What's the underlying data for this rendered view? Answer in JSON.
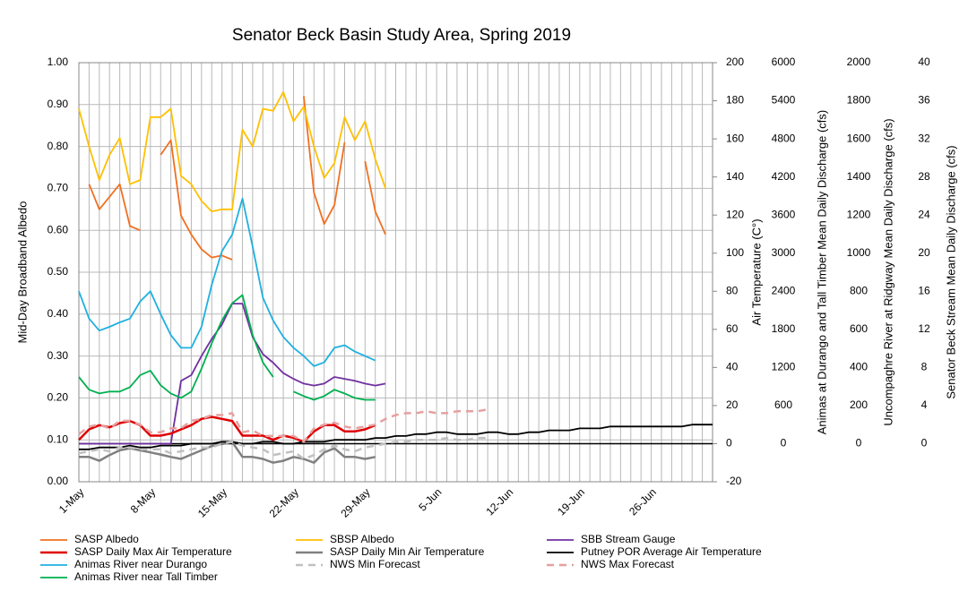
{
  "chart_data": {
    "type": "line",
    "title": "Senator Beck Basin Study Area, Spring 2019",
    "ylabel": "Mid-Day Broadband Albedo",
    "y2label": "Air Temperature (C°)",
    "y3label": "Animas at Durango and Tall Timber Mean Daily Discharge (cfs)",
    "y4label": "Uncompaghre River at Ridgway Mean Daily Discharge (cfs)",
    "y5label": "Senator Beck Stream Mean Daily Discharge (cfs)",
    "categories": [
      "1-May",
      null,
      null,
      null,
      null,
      null,
      null,
      "8-May",
      null,
      null,
      null,
      null,
      null,
      null,
      "15-May",
      null,
      null,
      null,
      null,
      null,
      null,
      "22-May",
      null,
      null,
      null,
      null,
      null,
      null,
      "29-May",
      null,
      null,
      null,
      null,
      null,
      null,
      "5-Jun",
      null,
      null,
      null,
      null,
      null,
      null,
      "12-Jun",
      null,
      null,
      null,
      null,
      null,
      null,
      "19-Jun",
      null,
      null,
      null,
      null,
      null,
      null,
      "26-Jun",
      null,
      null,
      null,
      null,
      null,
      null
    ],
    "ylim": [
      0,
      1
    ],
    "yticks": [
      {
        "value": 0,
        "label": "0.00"
      },
      {
        "value": 0.1,
        "label": "0.10"
      },
      {
        "value": 0.2,
        "label": "0.20"
      },
      {
        "value": 0.3,
        "label": "0.30"
      },
      {
        "value": 0.4,
        "label": "0.40"
      },
      {
        "value": 0.5,
        "label": "0.50"
      },
      {
        "value": 0.6,
        "label": "0.60"
      },
      {
        "value": 0.7,
        "label": "0.70"
      },
      {
        "value": 0.8,
        "label": "0.80"
      },
      {
        "value": 0.9,
        "label": "0.90"
      },
      {
        "value": 1,
        "label": "1.00"
      }
    ],
    "y2lim": [
      -20,
      200
    ],
    "y2ticks": [
      -20,
      0,
      20,
      40,
      60,
      80,
      100,
      120,
      140,
      160,
      180,
      200
    ],
    "y3lim": [
      -600,
      6000
    ],
    "y3ticks": [
      0,
      600,
      1200,
      1800,
      2400,
      3000,
      3600,
      4200,
      4800,
      5400,
      6000
    ],
    "y4lim": [
      -200,
      2000
    ],
    "y4ticks": [
      0,
      200,
      400,
      600,
      800,
      1000,
      1200,
      1400,
      1600,
      1800,
      2000
    ],
    "y5lim": [
      -4,
      40
    ],
    "y5ticks": [
      0,
      4,
      8,
      12,
      16,
      20,
      24,
      28,
      32,
      36,
      40
    ],
    "grid": true,
    "series": [
      {
        "name": "SASP Albedo",
        "color": "#f07020",
        "axis": "y",
        "values": [
          null,
          0.71,
          0.65,
          0.68,
          0.71,
          0.61,
          0.6,
          null,
          0.78,
          0.815,
          0.635,
          0.59,
          0.555,
          0.535,
          0.54,
          0.53,
          null,
          null,
          null,
          null,
          null,
          null,
          0.92,
          0.69,
          0.615,
          0.66,
          0.81,
          null,
          0.765,
          0.645,
          0.59,
          null,
          null,
          null,
          null,
          null,
          null,
          null,
          null,
          null,
          null,
          null,
          null,
          null,
          null,
          null,
          null,
          null,
          null,
          null,
          null,
          null,
          null,
          null,
          null,
          null,
          null,
          null,
          null,
          null,
          null,
          null,
          null
        ]
      },
      {
        "name": "SBSP Albedo",
        "color": "#ffc000",
        "axis": "y",
        "values": [
          0.89,
          0.8,
          0.72,
          0.78,
          0.82,
          0.71,
          0.72,
          0.87,
          0.87,
          0.89,
          0.73,
          0.71,
          0.67,
          0.645,
          0.65,
          0.65,
          0.84,
          0.8,
          0.89,
          0.885,
          0.93,
          0.86,
          0.895,
          0.8,
          0.725,
          0.76,
          0.87,
          0.815,
          0.86,
          0.77,
          0.7,
          null,
          null,
          null,
          null,
          null,
          null,
          null,
          null,
          null,
          null,
          null,
          null,
          null,
          null,
          null,
          null,
          null,
          null,
          null,
          null,
          null,
          null,
          null,
          null,
          null,
          null,
          null,
          null,
          null,
          null,
          null,
          null
        ]
      },
      {
        "name": "SBB Stream Gauge",
        "color": "#7030a0",
        "axis": "y5",
        "values": [
          0,
          0,
          0,
          0,
          0,
          0,
          0,
          0,
          0,
          0,
          6.6,
          7.2,
          9.2,
          11,
          12.5,
          14.7,
          14.7,
          11.2,
          9.4,
          8.5,
          7.4,
          6.8,
          6.3,
          6.1,
          6.3,
          7,
          6.8,
          6.6,
          6.3,
          6.1,
          6.3,
          null,
          null,
          null,
          null,
          null,
          null,
          null,
          null,
          null,
          null,
          null,
          null,
          null,
          null,
          null,
          null,
          null,
          null,
          null,
          null,
          null,
          null,
          null,
          null,
          null,
          null,
          null,
          null,
          null,
          null,
          null,
          null
        ]
      },
      {
        "name": "SASP Daily Max Air Temperature",
        "color": "#e00000",
        "axis": "y2",
        "width": 2.5,
        "values": [
          2,
          7.5,
          9.7,
          8.6,
          10.8,
          11.9,
          9.7,
          4.2,
          4.2,
          5.3,
          7.5,
          9.7,
          13,
          14.1,
          13,
          11.9,
          4.2,
          4.2,
          4.2,
          2,
          4.2,
          3.1,
          0.9,
          6.4,
          9.7,
          9.7,
          6.4,
          6.4,
          7.5,
          9.7,
          null,
          null,
          null,
          null,
          null,
          null,
          null,
          null,
          null,
          null,
          null,
          null,
          null,
          null,
          null,
          null,
          null,
          null,
          null,
          null,
          null,
          null,
          null,
          null,
          null,
          null,
          null,
          null,
          null,
          null,
          null,
          null,
          null
        ]
      },
      {
        "name": "SASP Daily Min Air Temperature",
        "color": "#808080",
        "axis": "y2",
        "width": 2.5,
        "values": [
          -7,
          -7,
          -9,
          -6,
          -3.5,
          -2.4,
          -3.5,
          -4.6,
          -5.7,
          -7,
          -8,
          -5.7,
          -3.5,
          -1.3,
          -0.2,
          0.9,
          -7,
          -7,
          -8,
          -10,
          -9,
          -7,
          -8,
          -10,
          -4.6,
          -2.4,
          -7,
          -7,
          -8,
          -7,
          null,
          null,
          null,
          null,
          null,
          null,
          null,
          null,
          null,
          null,
          null,
          null,
          null,
          null,
          null,
          null,
          null,
          null,
          null,
          null,
          null,
          null,
          null,
          null,
          null,
          null,
          null,
          null,
          null,
          null,
          null,
          null,
          null
        ]
      },
      {
        "name": "Putney POR Average Air Temperature",
        "color": "#000000",
        "axis": "y2",
        "values": [
          -3,
          -3,
          -2,
          -2,
          -2,
          -1,
          -2,
          -2,
          -1,
          -1,
          -1,
          0,
          0,
          0,
          1,
          1,
          0,
          0,
          1,
          1,
          0,
          0,
          1,
          1,
          1,
          2,
          2,
          2,
          2,
          3,
          3,
          4,
          4,
          5,
          5,
          6,
          6,
          5,
          5,
          5,
          6,
          6,
          5,
          5,
          6,
          6,
          7,
          7,
          7,
          8,
          8,
          8,
          9,
          9,
          9,
          9,
          9,
          9,
          9,
          9,
          10,
          10,
          10
        ]
      },
      {
        "name": "Animas River near Durango",
        "color": "#1fb0e0",
        "axis": "y3",
        "values": [
          2400,
          1970,
          1780,
          1840,
          1910,
          1970,
          2240,
          2400,
          2040,
          1710,
          1510,
          1510,
          1840,
          2500,
          3030,
          3290,
          3860,
          3100,
          2300,
          1940,
          1680,
          1510,
          1380,
          1220,
          1280,
          1510,
          1550,
          1450,
          1380,
          1310,
          null,
          null,
          null,
          null,
          null,
          null,
          null,
          null,
          null,
          null,
          null,
          null,
          null,
          null,
          null,
          null,
          null,
          null,
          null,
          null,
          null,
          null,
          null,
          null,
          null,
          null,
          null,
          null,
          null,
          null,
          null,
          null,
          null
        ]
      },
      {
        "name": "NWS Min Forecast",
        "color": "#c0c0c0",
        "axis": "y2",
        "dash": true,
        "values": [
          -5,
          -4,
          -3,
          -4,
          -2,
          -2,
          -3,
          -3,
          -3,
          -5,
          -4,
          -3,
          -2,
          -2,
          0,
          1,
          -1,
          -2,
          -3,
          -6,
          -5,
          -4,
          -8,
          -6,
          -3,
          -1,
          -3,
          -4,
          -2,
          -1,
          0,
          1,
          1,
          2,
          2,
          2,
          3,
          2,
          2,
          3,
          3,
          null,
          null,
          null,
          null,
          null,
          null,
          null,
          null,
          null,
          null,
          null,
          null,
          null,
          null,
          null,
          null,
          null,
          null,
          null,
          null,
          null,
          null
        ]
      },
      {
        "name": "NWS Max Forecast",
        "color": "#e6a0a0",
        "axis": "y2",
        "dash": true,
        "values": [
          5,
          9,
          10,
          8,
          12,
          12,
          10,
          6,
          6,
          8,
          8,
          12,
          13,
          15,
          15,
          16,
          6,
          7,
          4,
          4,
          4,
          4,
          1,
          8,
          10,
          11,
          9,
          8,
          9,
          10,
          13,
          15,
          16,
          16,
          17,
          16,
          16,
          17,
          17,
          17,
          18,
          null,
          null,
          null,
          null,
          null,
          null,
          null,
          null,
          null,
          null,
          null,
          null,
          null,
          null,
          null,
          null,
          null,
          null,
          null,
          null,
          null,
          null
        ]
      },
      {
        "name": "Animas River near Tall Timber",
        "color": "#00b050",
        "axis": "y3",
        "values": [
          1050,
          850,
          790,
          820,
          820,
          890,
          1080,
          1150,
          920,
          790,
          720,
          820,
          1180,
          1580,
          1940,
          2210,
          2340,
          1710,
          1280,
          1050,
          null,
          820,
          750,
          690,
          750,
          850,
          790,
          720,
          690,
          690,
          null,
          null,
          null,
          null,
          null,
          null,
          null,
          null,
          null,
          null,
          null,
          null,
          null,
          null,
          null,
          null,
          null,
          null,
          null,
          null,
          null,
          null,
          null,
          null,
          null,
          null,
          null,
          null,
          null,
          null,
          null,
          null,
          null
        ]
      }
    ]
  }
}
